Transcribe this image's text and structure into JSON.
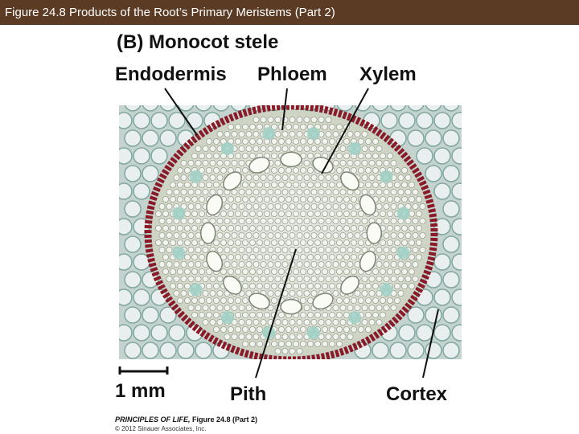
{
  "header": {
    "title": "Figure 24.8  Products of the Root’s Primary Meristems (Part 2)"
  },
  "figure": {
    "panel_title": "(B)  Monocot stele",
    "labels": {
      "endodermis": "Endodermis",
      "phloem": "Phloem",
      "xylem": "Xylem",
      "pith": "Pith",
      "cortex": "Cortex"
    },
    "scale_bar": "1 mm"
  },
  "credit": {
    "book": "PRINCIPLES OF LIFE,",
    "figure": "Figure 24.8 (Part 2)",
    "copyright": "© 2012 Sinauer Associates, Inc."
  }
}
